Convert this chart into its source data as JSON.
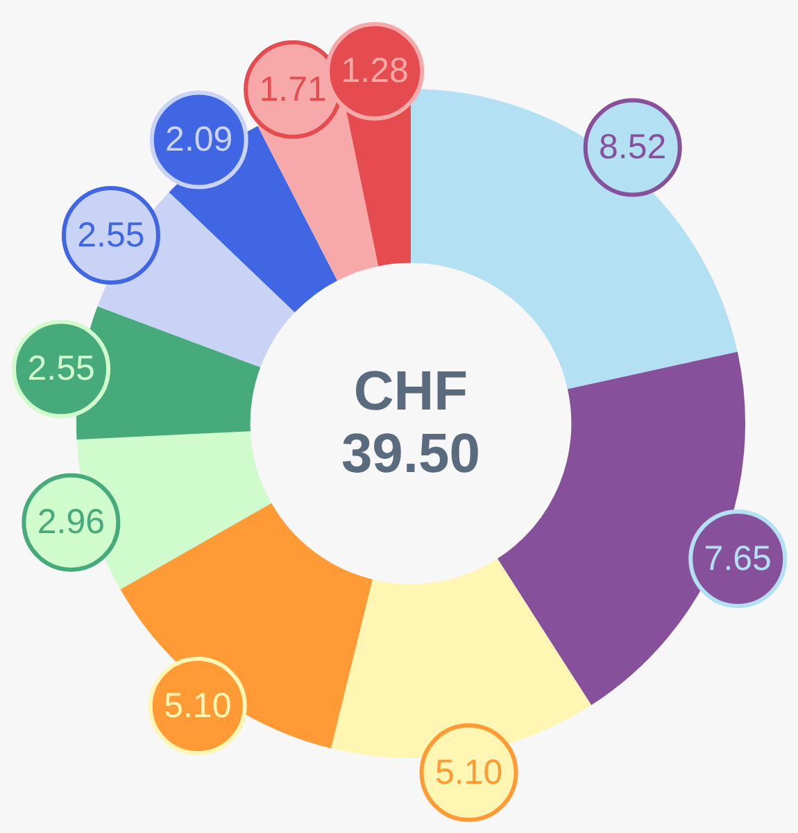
{
  "chart_data": {
    "type": "donut",
    "title": "CHF 39.50",
    "categories": [
      null,
      null,
      null,
      null,
      null,
      null,
      null,
      null,
      null,
      null
    ],
    "values": [
      8.52,
      7.65,
      5.1,
      5.1,
      2.96,
      2.55,
      2.55,
      2.09,
      1.71,
      1.28
    ],
    "value_labels": [
      "8.52",
      "7.65",
      "5.10",
      "5.10",
      "2.96",
      "2.55",
      "2.55",
      "2.09",
      "1.71",
      "1.28"
    ],
    "colors": [
      "#b4e0f3",
      "#86509a",
      "#fff6b3",
      "#ff9a35",
      "#d0fbcd",
      "#47aa7b",
      "#c8d3f6",
      "#4166e3",
      "#f7a8a8",
      "#e54c50"
    ]
  }
}
